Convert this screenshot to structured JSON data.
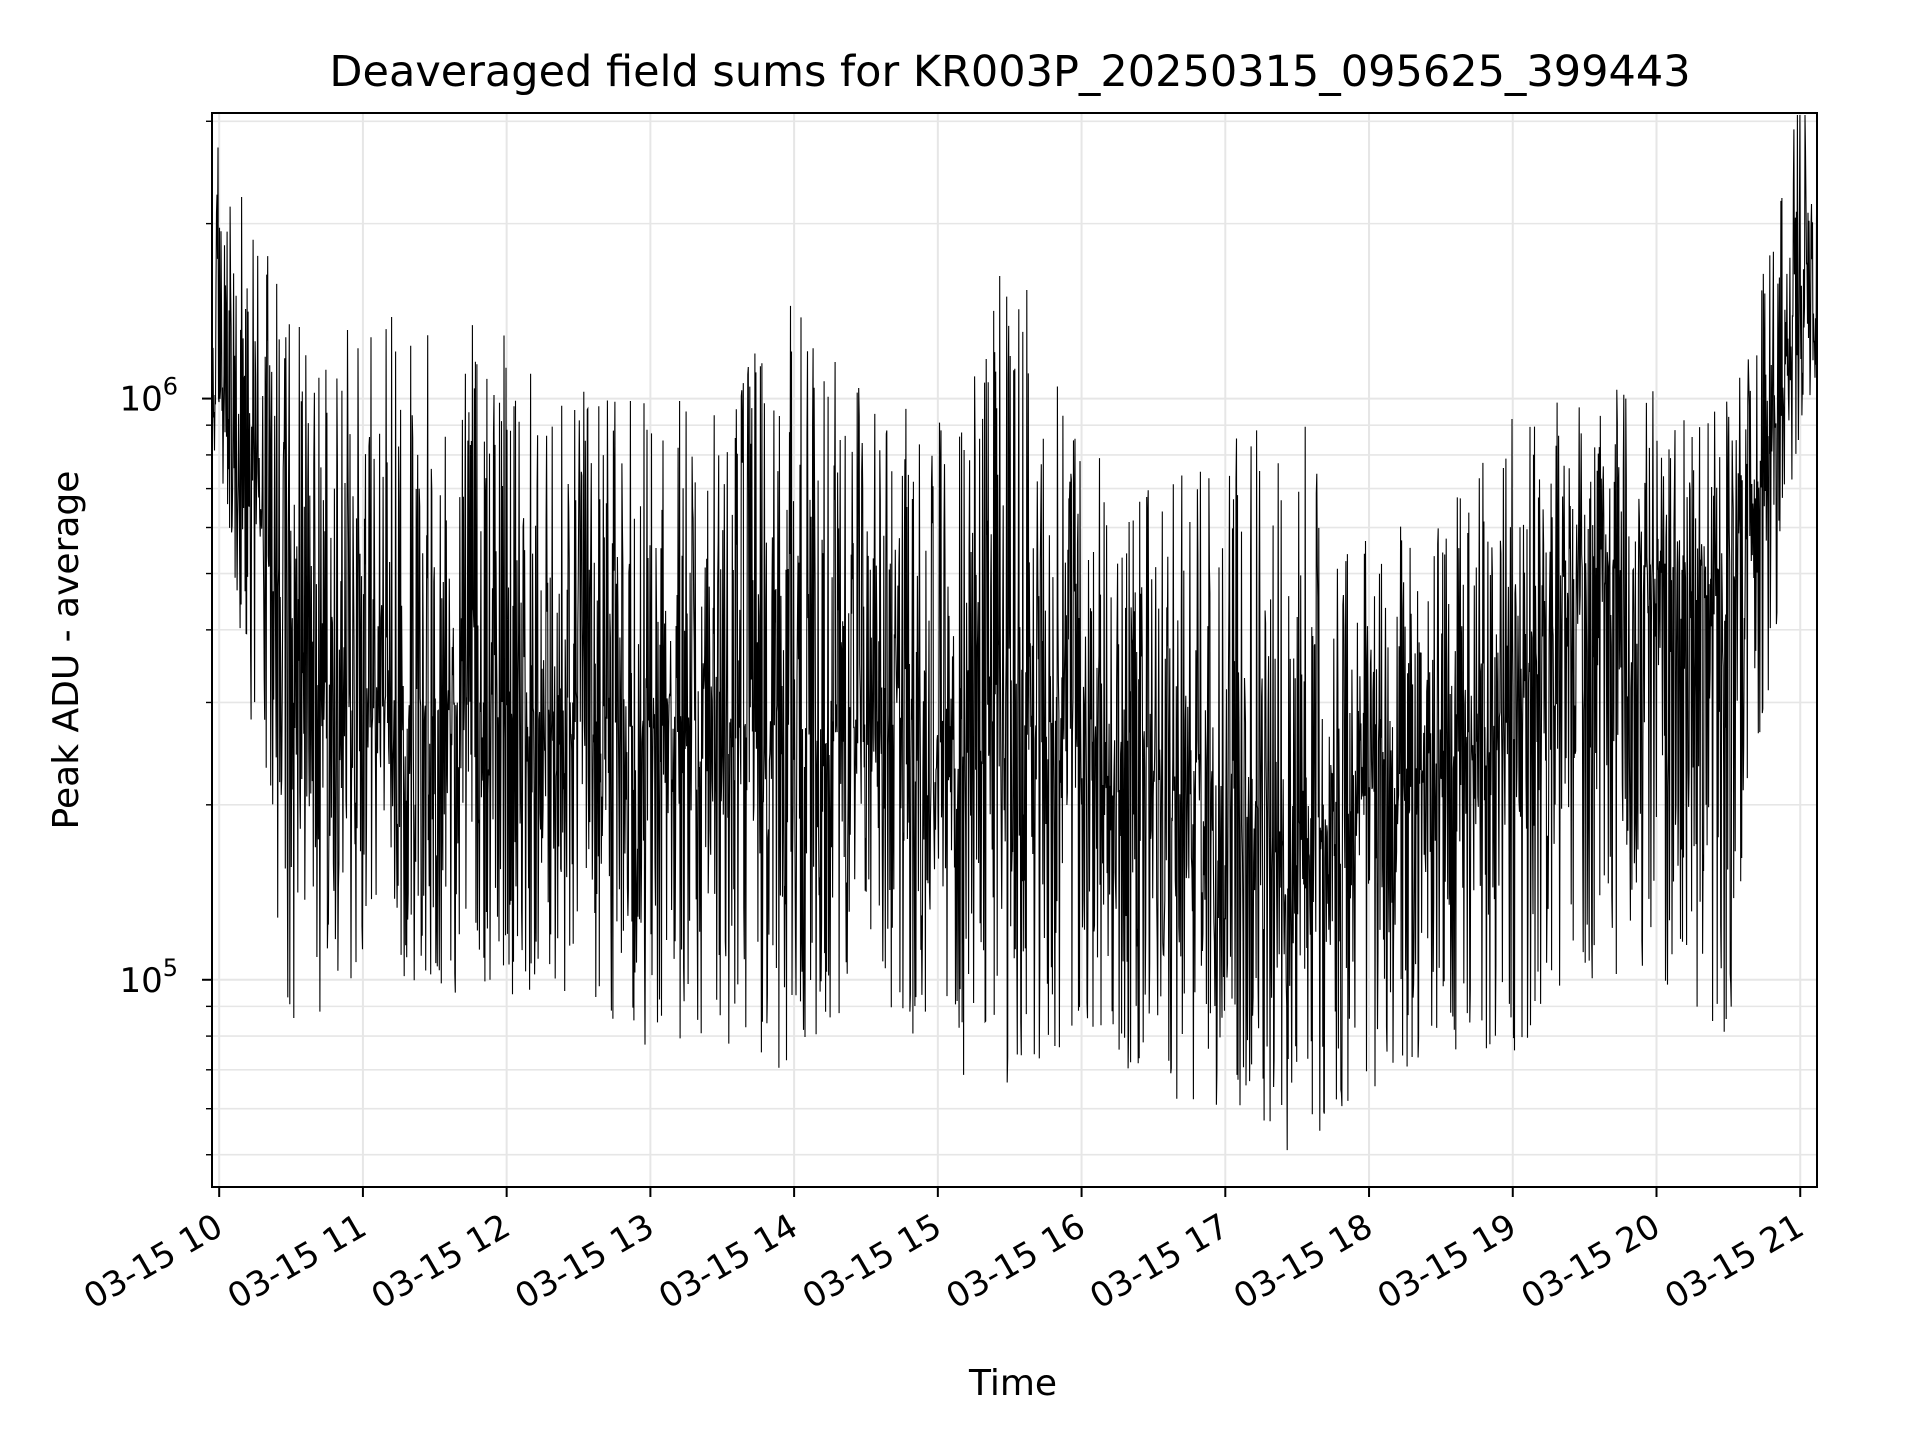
{
  "chart_data": {
    "type": "line",
    "title": "Deaveraged field sums for KR003P_20250315_095625_399443",
    "xlabel": "Time",
    "ylabel": "Peak ADU - average",
    "yscale": "log",
    "grid": true,
    "line_color": "#000000",
    "x_range": [
      "03-15 09:57",
      "03-15 21:07"
    ],
    "ylim": [
      44000,
      3100000
    ],
    "x_ticks": [
      "03-15 10",
      "03-15 11",
      "03-15 12",
      "03-15 13",
      "03-15 14",
      "03-15 15",
      "03-15 16",
      "03-15 17",
      "03-15 18",
      "03-15 19",
      "03-15 20",
      "03-15 21"
    ],
    "y_ticks": [
      {
        "base": "10",
        "exp": "5",
        "value": 100000
      },
      {
        "base": "10",
        "exp": "6",
        "value": 1000000
      }
    ],
    "series": [
      {
        "x": [
          "03-15 10:00",
          "03-15 10:30",
          "03-15 11:00",
          "03-15 11:30",
          "03-15 12:00",
          "03-15 12:30",
          "03-15 13:00",
          "03-15 13:30",
          "03-15 14:00",
          "03-15 14:30",
          "03-15 15:00",
          "03-15 15:30",
          "03-15 16:00",
          "03-15 16:30",
          "03-15 17:00",
          "03-15 17:30",
          "03-15 18:00",
          "03-15 18:30",
          "03-15 19:00",
          "03-15 19:30",
          "03-15 20:00",
          "03-15 20:30",
          "03-15 21:00"
        ],
        "median": [
          1300000,
          350000,
          280000,
          300000,
          300000,
          280000,
          270000,
          260000,
          240000,
          280000,
          220000,
          260000,
          260000,
          220000,
          190000,
          170000,
          210000,
          220000,
          300000,
          520000,
          500000,
          430000,
          1350000
        ],
        "low": [
          750000,
          80000,
          95000,
          95000,
          95000,
          85000,
          75000,
          72000,
          70000,
          100000,
          72000,
          60000,
          85000,
          62000,
          52000,
          50000,
          65000,
          70000,
          72000,
          100000,
          92000,
          80000,
          900000
        ],
        "high": [
          2900000,
          1400000,
          1450000,
          1300000,
          1450000,
          1100000,
          1000000,
          1000000,
          1550000,
          1050000,
          900000,
          2000000,
          850000,
          700000,
          850000,
          950000,
          620000,
          620000,
          950000,
          1050000,
          1050000,
          1000000,
          3500000
        ]
      }
    ]
  }
}
